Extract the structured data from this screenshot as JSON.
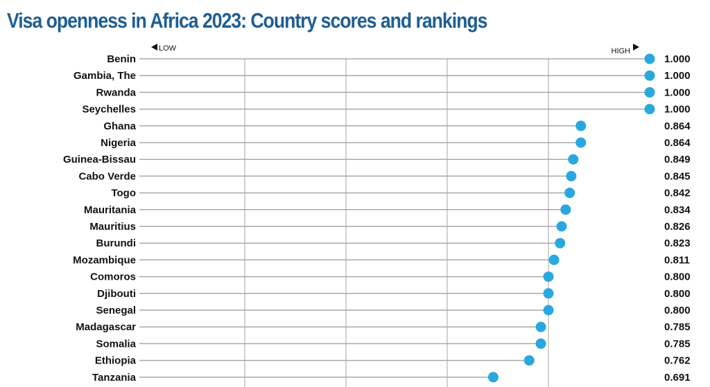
{
  "chart_data": {
    "type": "scatter",
    "title": "Visa openness in Africa 2023: Country scores and rankings",
    "low_label": "LOW",
    "high_label": "HIGH",
    "xlim": [
      0,
      1
    ],
    "grid_x": [
      0.2,
      0.4,
      0.6,
      0.8
    ],
    "dot_color": "#29a8e0",
    "categories": [
      "Benin",
      "Gambia, The",
      "Rwanda",
      "Seychelles",
      "Ghana",
      "Nigeria",
      "Guinea-Bissau",
      "Cabo Verde",
      "Togo",
      "Mauritania",
      "Mauritius",
      "Burundi",
      "Mozambique",
      "Comoros",
      "Djibouti",
      "Senegal",
      "Madagascar",
      "Somalia",
      "Ethiopia",
      "Tanzania"
    ],
    "values": [
      1.0,
      1.0,
      1.0,
      1.0,
      0.864,
      0.864,
      0.849,
      0.845,
      0.842,
      0.834,
      0.826,
      0.823,
      0.811,
      0.8,
      0.8,
      0.8,
      0.785,
      0.785,
      0.762,
      0.691
    ],
    "value_labels": [
      "1.000",
      "1.000",
      "1.000",
      "1.000",
      "0.864",
      "0.864",
      "0.849",
      "0.845",
      "0.842",
      "0.834",
      "0.826",
      "0.823",
      "0.811",
      "0.800",
      "0.800",
      "0.800",
      "0.785",
      "0.785",
      "0.762",
      "0.691"
    ]
  }
}
